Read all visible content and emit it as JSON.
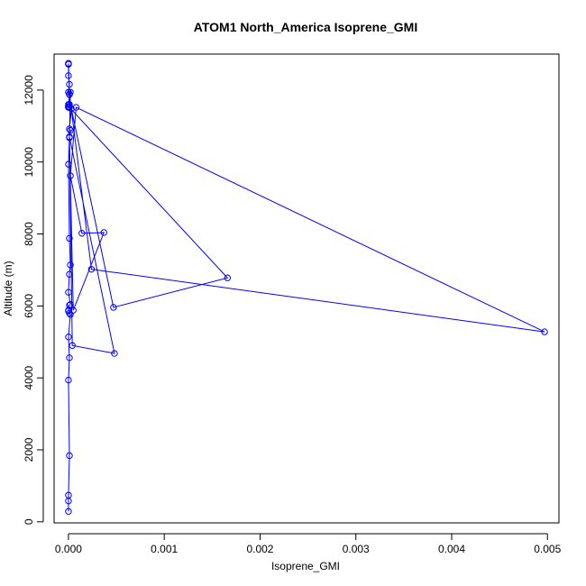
{
  "chart_data": {
    "type": "line",
    "title": "ATOM1 North_America Isoprene_GMI",
    "xlabel": "Isoprene_GMI",
    "ylabel": "Altitude (m)",
    "xlim": [
      -0.00015,
      0.00512
    ],
    "ylim": [
      -30,
      13000
    ],
    "x_ticks": [
      0,
      0.001,
      0.002,
      0.003,
      0.004,
      0.005
    ],
    "x_tick_labels": [
      "0.000",
      "0.001",
      "0.002",
      "0.003",
      "0.004",
      "0.005"
    ],
    "y_ticks": [
      0,
      2000,
      4000,
      6000,
      8000,
      10000,
      12000
    ],
    "y_tick_labels": [
      "0",
      "2000",
      "4000",
      "6000",
      "8000",
      "10000",
      "12000"
    ],
    "grid": false,
    "series": [
      {
        "color": "#0000ff",
        "marker": "open-circle",
        "x": [
          0.0,
          0.0,
          0.0,
          1e-05,
          0.0,
          1e-05,
          0.0,
          2e-05,
          1e-05,
          0.0,
          0.0,
          1e-05,
          2e-05,
          0.0,
          1e-05,
          2e-05,
          1e-05,
          0.0,
          1e-05,
          4e-05,
          0.00048,
          1e-05,
          2e-05,
          1e-05,
          3e-05,
          0.00047,
          0.00166,
          1e-05,
          0.0,
          1e-05,
          1e-05,
          0.00024,
          0.00497,
          8e-05,
          2e-05,
          0.00014,
          0.00037,
          5e-05,
          1e-05,
          2e-05,
          1e-05,
          0.0,
          1e-05,
          0.0,
          0.0,
          0.0,
          0.0,
          0.0,
          1e-05,
          0.0,
          0.0,
          0.0,
          0.0
        ],
        "y": [
          290,
          580,
          740,
          1840,
          3940,
          4560,
          5140,
          5760,
          5800,
          5880,
          5860,
          6020,
          6040,
          6380,
          6880,
          7140,
          7880,
          9940,
          10680,
          4900,
          4680,
          10700,
          10880,
          10920,
          11480,
          5960,
          6780,
          11520,
          11540,
          11600,
          11880,
          7020,
          5280,
          11520,
          9620,
          8020,
          8040,
          5880,
          10680,
          11940,
          11880,
          11940,
          12160,
          12400,
          12720,
          12740,
          12720,
          12740,
          11880,
          11520,
          11600,
          11540,
          11520
        ]
      }
    ]
  }
}
